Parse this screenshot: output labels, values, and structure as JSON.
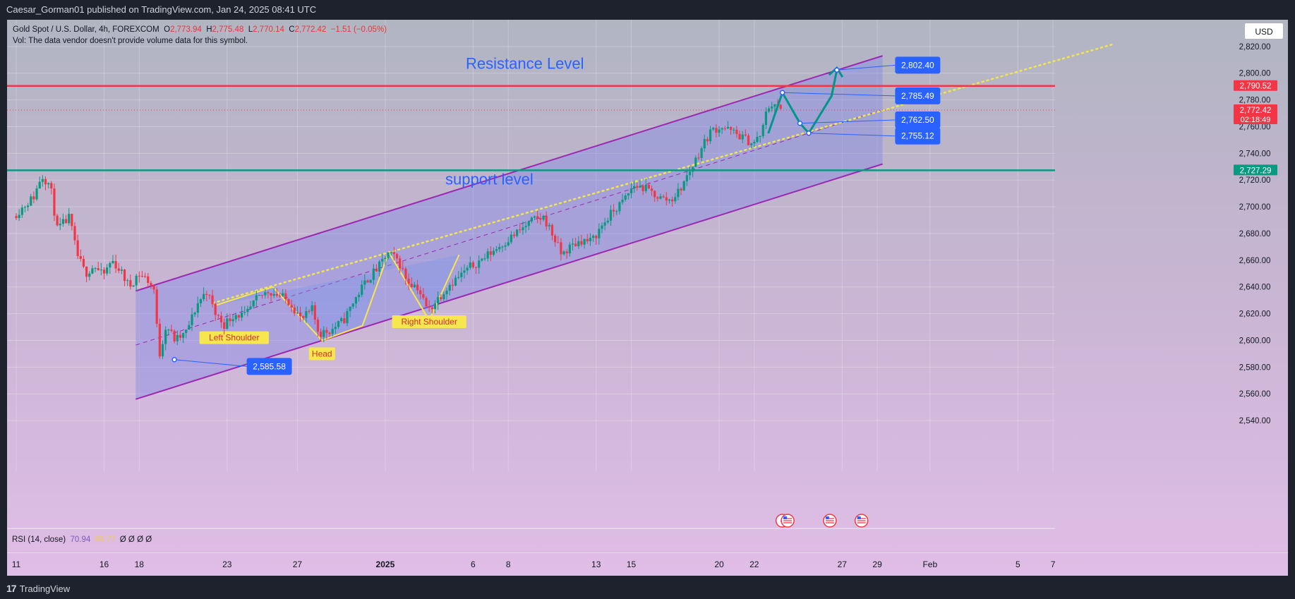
{
  "header": {
    "publisher": "Caesar_Gorman01 published on TradingView.com, Jan 24, 2025 08:41 UTC"
  },
  "legend": {
    "symbol": "Gold Spot / U.S. Dollar, 4h, FOREXCOM",
    "o_label": "O",
    "o_value": "2,773.94",
    "h_label": "H",
    "h_value": "2,775.48",
    "l_label": "L",
    "l_value": "2,770.14",
    "c_label": "C",
    "c_value": "2,772.42",
    "change": "−1.51 (−0.05%)",
    "vol_note": "Vol: The data vendor doesn't provide volume data for this symbol."
  },
  "currency_button": "USD",
  "rsi": {
    "label": "RSI (14, close)",
    "value1": "70.94",
    "value2": "68.77",
    "extra": "Ø Ø Ø Ø"
  },
  "footer": {
    "brand": "TradingView",
    "logo_mark": "17"
  },
  "colors": {
    "up": "#089981",
    "down": "#f23645",
    "resistance": "#f23645",
    "support": "#089981",
    "channel": "#9c27b0",
    "callout": "#2962ff",
    "forecast": "#009688",
    "pattern": "#f7e64d"
  },
  "chart_data": {
    "type": "candlestick",
    "timeframe": "4h",
    "ylim": [
      2530,
      2840
    ],
    "price_axis": {
      "ticks": [
        2540,
        2560,
        2580,
        2600,
        2620,
        2640,
        2660,
        2680,
        2700,
        2720,
        2740,
        2760,
        2780,
        2800,
        2820
      ],
      "tick_labels": [
        "2,540.00",
        "2,560.00",
        "2,580.00",
        "2,600.00",
        "2,620.00",
        "2,640.00",
        "2,660.00",
        "2,680.00",
        "2,700.00",
        "2,720.00",
        "2,740.00",
        "2,760.00",
        "2,780.00",
        "2,800.00",
        "2,820.00"
      ]
    },
    "time_axis": {
      "labels": [
        "11",
        "16",
        "18",
        "23",
        "27",
        "2025",
        "6",
        "8",
        "13",
        "15",
        "20",
        "22",
        "27",
        "29",
        "Feb",
        "5",
        "7"
      ],
      "day_index": [
        0,
        5,
        7,
        12,
        16,
        21,
        26,
        28,
        33,
        35,
        40,
        42,
        47,
        49,
        52,
        57,
        59
      ]
    },
    "price_labels": [
      {
        "text": "2,790.52",
        "price": 2790.52,
        "kind": "resistance"
      },
      {
        "text": "2,772.42",
        "price": 2772.42,
        "kind": "last",
        "countdown": "02:18:49"
      },
      {
        "text": "2,727.29",
        "price": 2727.29,
        "kind": "support"
      }
    ],
    "levels": [
      {
        "label": "Resistance Level",
        "price": 2790.52
      },
      {
        "label": "support level",
        "price": 2727.29
      }
    ],
    "channel": {
      "upper": [
        [
          6.8,
          2637
        ],
        [
          49.3,
          2813
        ]
      ],
      "lower": [
        [
          6.8,
          2556
        ],
        [
          49.3,
          2732
        ]
      ],
      "mid": [
        [
          6.8,
          2596.5
        ],
        [
          49.3,
          2772.5
        ]
      ]
    },
    "trendline": [
      [
        11.2,
        2628
      ],
      [
        62.5,
        2822
      ]
    ],
    "pattern": {
      "points": [
        [
          11.3,
          2626
        ],
        [
          14.6,
          2640
        ],
        [
          17.4,
          2600
        ],
        [
          19.7,
          2611
        ],
        [
          21.2,
          2666
        ],
        [
          23.5,
          2615
        ],
        [
          25.2,
          2664
        ]
      ],
      "labels": [
        {
          "text": "Left Shoulder",
          "day": 12.4,
          "price": 2602
        },
        {
          "text": "Head",
          "day": 17.4,
          "price": 2590
        },
        {
          "text": "Right Shoulder",
          "day": 23.5,
          "price": 2614
        }
      ]
    },
    "forecast_path": [
      [
        42.8,
        2755
      ],
      [
        43.6,
        2785.5
      ],
      [
        44.6,
        2762.5
      ],
      [
        45.1,
        2755.1
      ],
      [
        46.4,
        2783
      ],
      [
        46.7,
        2802.4
      ]
    ],
    "callouts": [
      {
        "text": "2,585.58",
        "day": 9.0,
        "price": 2585.58,
        "box_day": 14.4,
        "box_price": 2580.5
      },
      {
        "text": "2,802.40",
        "day": 46.7,
        "price": 2802.4,
        "box_day": 51.3,
        "box_price": 2806
      },
      {
        "text": "2,785.49",
        "day": 43.6,
        "price": 2785.49,
        "box_day": 51.3,
        "box_price": 2783
      },
      {
        "text": "2,762.50",
        "day": 44.6,
        "price": 2762.5,
        "box_day": 51.3,
        "box_price": 2765
      },
      {
        "text": "2,755.12",
        "day": 45.1,
        "price": 2755.12,
        "box_day": 51.3,
        "box_price": 2753
      }
    ],
    "event_markers": [
      {
        "day": 43.6,
        "type": "lightning"
      },
      {
        "day": 43.9,
        "type": "us-flag"
      },
      {
        "day": 46.3,
        "type": "us-flag"
      },
      {
        "day": 48.1,
        "type": "us-flag"
      }
    ],
    "price_path": [
      [
        0,
        2693
      ],
      [
        1.2,
        2708
      ],
      [
        1.6,
        2724
      ],
      [
        2.1,
        2716
      ],
      [
        2.5,
        2683
      ],
      [
        3.2,
        2692
      ],
      [
        3.6,
        2665
      ],
      [
        4.1,
        2650
      ],
      [
        4.6,
        2656
      ],
      [
        5.1,
        2648
      ],
      [
        5.6,
        2660
      ],
      [
        6.1,
        2652
      ],
      [
        6.6,
        2640
      ],
      [
        7.1,
        2650
      ],
      [
        7.6,
        2646
      ],
      [
        8.0,
        2638
      ],
      [
        8.3,
        2588
      ],
      [
        8.7,
        2612
      ],
      [
        9.2,
        2600
      ],
      [
        9.8,
        2605
      ],
      [
        10.5,
        2628
      ],
      [
        11.0,
        2637
      ],
      [
        11.5,
        2620
      ],
      [
        12.0,
        2612
      ],
      [
        12.6,
        2620
      ],
      [
        13.2,
        2618
      ],
      [
        13.8,
        2630
      ],
      [
        14.5,
        2637
      ],
      [
        15.1,
        2634
      ],
      [
        15.8,
        2628
      ],
      [
        16.4,
        2615
      ],
      [
        17.0,
        2623
      ],
      [
        17.4,
        2605
      ],
      [
        18.1,
        2608
      ],
      [
        18.8,
        2615
      ],
      [
        19.4,
        2630
      ],
      [
        20.1,
        2645
      ],
      [
        20.8,
        2655
      ],
      [
        21.3,
        2665
      ],
      [
        21.9,
        2660
      ],
      [
        22.4,
        2645
      ],
      [
        23.0,
        2640
      ],
      [
        23.6,
        2622
      ],
      [
        24.2,
        2632
      ],
      [
        24.8,
        2642
      ],
      [
        25.4,
        2648
      ],
      [
        26.0,
        2655
      ],
      [
        26.6,
        2660
      ],
      [
        27.2,
        2666
      ],
      [
        27.8,
        2672
      ],
      [
        28.4,
        2678
      ],
      [
        29.0,
        2684
      ],
      [
        29.6,
        2690
      ],
      [
        30.2,
        2692
      ],
      [
        30.8,
        2676
      ],
      [
        31.2,
        2664
      ],
      [
        31.7,
        2670
      ],
      [
        32.3,
        2675
      ],
      [
        32.9,
        2674
      ],
      [
        33.5,
        2686
      ],
      [
        34.1,
        2696
      ],
      [
        34.7,
        2704
      ],
      [
        35.3,
        2716
      ],
      [
        35.9,
        2714
      ],
      [
        36.4,
        2710
      ],
      [
        36.9,
        2706
      ],
      [
        37.4,
        2705
      ],
      [
        37.9,
        2712
      ],
      [
        38.3,
        2722
      ],
      [
        38.7,
        2732
      ],
      [
        39.2,
        2745
      ],
      [
        39.7,
        2757
      ],
      [
        40.3,
        2760
      ],
      [
        40.9,
        2756
      ],
      [
        41.5,
        2752
      ],
      [
        42.1,
        2747
      ],
      [
        42.6,
        2755
      ],
      [
        42.9,
        2774
      ],
      [
        43.3,
        2778
      ],
      [
        43.6,
        2772.42
      ]
    ]
  }
}
